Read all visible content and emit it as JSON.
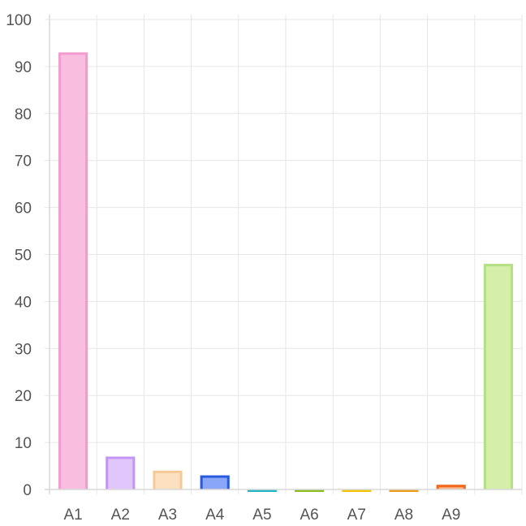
{
  "chart_data": {
    "type": "bar",
    "title": "",
    "xlabel": "",
    "ylabel": "",
    "ylim": [
      0,
      100
    ],
    "yticks": [
      0,
      10,
      20,
      30,
      40,
      50,
      60,
      70,
      80,
      90,
      100
    ],
    "grid": true,
    "categories": [
      "A1",
      "A2",
      "A3",
      "A4",
      "A5",
      "A6",
      "A7",
      "A8",
      "A9",
      ""
    ],
    "values": [
      93,
      7,
      4,
      3,
      0,
      0,
      0,
      0,
      1,
      48
    ],
    "colors": [
      {
        "fill": "#f9bde0",
        "border": "#f29bcd"
      },
      {
        "fill": "#e0c6fb",
        "border": "#c295f3"
      },
      {
        "fill": "#fde0c0",
        "border": "#f5c996"
      },
      {
        "fill": "#8aa6f8",
        "border": "#2a5bdc"
      },
      {
        "fill": "#7fd9dc",
        "border": "#22b5c2"
      },
      {
        "fill": "#b6d66f",
        "border": "#8fbb22"
      },
      {
        "fill": "#fbe08a",
        "border": "#f2c400"
      },
      {
        "fill": "#f9c98a",
        "border": "#f09a1a"
      },
      {
        "fill": "#f9b58a",
        "border": "#f2691d"
      },
      {
        "fill": "#d6efa8",
        "border": "#b3e083"
      }
    ]
  }
}
